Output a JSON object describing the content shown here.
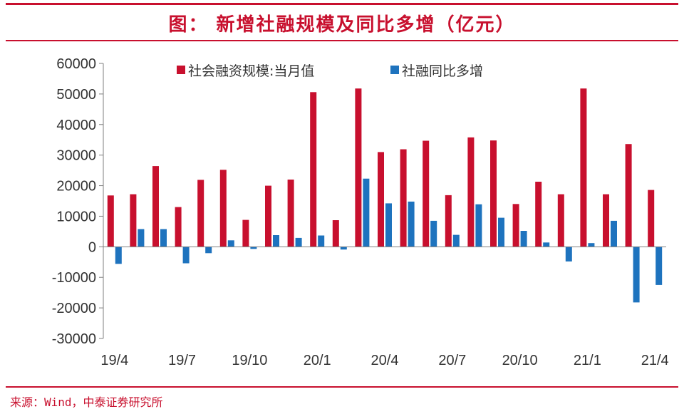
{
  "title": "图：   新增社融规模及同比多增（亿元）",
  "source": "来源：Wind，中泰证券研究所",
  "colors": {
    "accent": "#c8102e",
    "series1": "#c8102e",
    "series2": "#1e73be"
  },
  "chart_data": {
    "type": "bar",
    "title": "",
    "xlabel": "",
    "ylabel": "",
    "ylim": [
      -30000,
      60000
    ],
    "yticks": [
      60000,
      50000,
      40000,
      30000,
      20000,
      10000,
      0,
      -10000,
      -20000,
      -30000
    ],
    "grid": false,
    "legend_position": "top-center",
    "categories": [
      "19/4",
      "19/5",
      "19/6",
      "19/7",
      "19/8",
      "19/9",
      "19/10",
      "19/11",
      "19/12",
      "20/1",
      "20/2",
      "20/3",
      "20/4",
      "20/5",
      "20/6",
      "20/7",
      "20/8",
      "20/9",
      "20/10",
      "20/11",
      "20/12",
      "21/1",
      "21/2",
      "21/3",
      "21/4"
    ],
    "xtick_labels": [
      "19/4",
      "",
      "",
      "19/7",
      "",
      "",
      "19/10",
      "",
      "",
      "20/1",
      "",
      "",
      "20/4",
      "",
      "",
      "20/7",
      "",
      "",
      "20/10",
      "",
      "",
      "21/1",
      "",
      "",
      "21/4"
    ],
    "series": [
      {
        "name": "社会融资规模:当月值",
        "color": "#c8102e",
        "values": [
          16800,
          17200,
          26400,
          13000,
          21900,
          25200,
          8800,
          20000,
          22000,
          50600,
          8700,
          51800,
          31000,
          31900,
          34700,
          16900,
          35800,
          34800,
          14000,
          21300,
          17200,
          51800,
          17200,
          33600,
          18600
        ]
      },
      {
        "name": "社融同比多增",
        "color": "#1e73be",
        "values": [
          -5600,
          5800,
          5800,
          -5400,
          -2100,
          2100,
          -700,
          3800,
          2900,
          3700,
          -900,
          22300,
          14200,
          14800,
          8500,
          3900,
          13900,
          9500,
          5200,
          1400,
          -4800,
          1200,
          8500,
          -18200,
          -12500
        ]
      }
    ]
  }
}
